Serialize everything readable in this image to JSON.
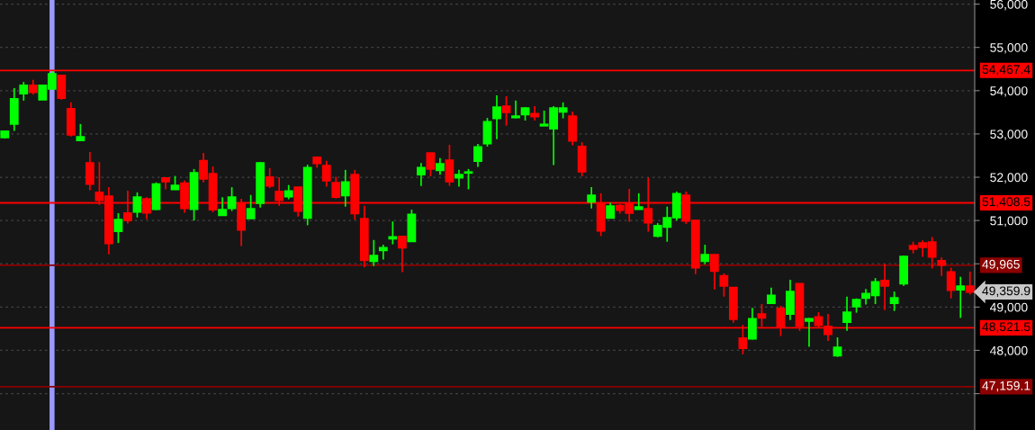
{
  "chart_data": {
    "type": "candlestick",
    "categories": [
      null,
      null,
      null,
      null,
      null,
      null,
      null,
      null,
      null,
      null,
      null,
      null,
      null,
      null,
      null,
      null,
      null,
      null,
      null,
      null,
      null,
      null,
      null,
      null,
      null,
      null,
      null,
      null,
      null,
      null,
      null,
      null,
      null,
      null,
      null,
      null,
      null,
      null,
      null,
      null,
      null,
      null,
      null,
      null,
      null,
      null,
      null,
      null,
      null,
      null,
      null,
      null,
      null,
      null,
      null,
      null,
      null,
      null,
      null,
      null,
      null,
      null,
      null,
      null,
      null,
      null,
      null,
      null,
      null,
      null,
      null,
      null,
      null,
      null,
      null,
      null,
      null,
      null,
      null,
      null,
      null,
      null,
      null,
      null,
      null,
      null,
      null,
      null,
      null,
      null,
      null,
      null,
      null,
      null,
      null,
      null,
      null,
      null,
      null,
      null,
      null,
      null,
      null
    ],
    "ohlc": [
      [
        52920,
        53080,
        52900,
        53060
      ],
      [
        53230,
        54060,
        53070,
        53810
      ],
      [
        53930,
        54200,
        53770,
        54120
      ],
      [
        54120,
        54250,
        53910,
        53960
      ],
      [
        53790,
        54140,
        53790,
        54120
      ],
      [
        54040,
        54450,
        54040,
        54390
      ],
      [
        54350,
        54350,
        53790,
        53830
      ],
      [
        53580,
        53730,
        52940,
        52980
      ],
      [
        52850,
        53230,
        52850,
        52930
      ],
      [
        52330,
        52580,
        51700,
        51840
      ],
      [
        51650,
        52350,
        51360,
        51470
      ],
      [
        51560,
        51770,
        50220,
        50470
      ],
      [
        50750,
        51170,
        50480,
        51020
      ],
      [
        51170,
        51690,
        50930,
        51000
      ],
      [
        51200,
        51650,
        51070,
        51540
      ],
      [
        51500,
        51540,
        51030,
        51180
      ],
      [
        51260,
        51880,
        51240,
        51840
      ],
      [
        51980,
        51980,
        51720,
        51900
      ],
      [
        51720,
        52030,
        51720,
        51810
      ],
      [
        51860,
        51920,
        51180,
        51280
      ],
      [
        51260,
        52190,
        51000,
        52100
      ],
      [
        52380,
        52560,
        51880,
        51960
      ],
      [
        52080,
        52250,
        51190,
        51250
      ],
      [
        51120,
        51540,
        51120,
        51250
      ],
      [
        51280,
        51770,
        51220,
        51540
      ],
      [
        51380,
        51500,
        50410,
        50780
      ],
      [
        51050,
        51590,
        51030,
        51270
      ],
      [
        51400,
        52350,
        51300,
        52330
      ],
      [
        52000,
        52210,
        51750,
        51800
      ],
      [
        51670,
        52000,
        51340,
        51470
      ],
      [
        51550,
        51820,
        51490,
        51680
      ],
      [
        51770,
        51770,
        51090,
        51220
      ],
      [
        51060,
        52290,
        50890,
        52220
      ],
      [
        52460,
        52480,
        52220,
        52320
      ],
      [
        52270,
        52380,
        51780,
        51920
      ],
      [
        51870,
        52010,
        51510,
        51540
      ],
      [
        51580,
        52170,
        51320,
        51890
      ],
      [
        52060,
        52170,
        51020,
        51160
      ],
      [
        51040,
        51340,
        49920,
        50080
      ],
      [
        50060,
        50550,
        49950,
        50190
      ],
      [
        50310,
        50440,
        50100,
        50370
      ],
      [
        50580,
        50980,
        50450,
        50620
      ],
      [
        50630,
        50650,
        49810,
        50370
      ],
      [
        50520,
        51250,
        50520,
        51140
      ],
      [
        52060,
        52330,
        51800,
        52220
      ],
      [
        52560,
        52560,
        52020,
        52190
      ],
      [
        52160,
        52440,
        52060,
        52310
      ],
      [
        52390,
        52750,
        51800,
        51900
      ],
      [
        51990,
        52170,
        51780,
        52060
      ],
      [
        52100,
        52190,
        51720,
        52120
      ],
      [
        52370,
        52770,
        52240,
        52700
      ],
      [
        52780,
        53370,
        52710,
        53280
      ],
      [
        53360,
        53890,
        52880,
        53620
      ],
      [
        53640,
        53870,
        53190,
        53500
      ],
      [
        53380,
        53770,
        53360,
        53410
      ],
      [
        53450,
        53620,
        53310,
        53600
      ],
      [
        53470,
        53640,
        53310,
        53400
      ],
      [
        53190,
        53540,
        53190,
        53220
      ],
      [
        53120,
        53640,
        52280,
        53600
      ],
      [
        53510,
        53730,
        53360,
        53600
      ],
      [
        53410,
        53520,
        52740,
        52840
      ],
      [
        52710,
        52810,
        52020,
        52130
      ],
      [
        51430,
        51770,
        51280,
        51580
      ],
      [
        51400,
        51630,
        50640,
        50760
      ],
      [
        51060,
        51410,
        51060,
        51330
      ],
      [
        51340,
        51380,
        51160,
        51240
      ],
      [
        51400,
        51730,
        50970,
        51170
      ],
      [
        51260,
        51630,
        51260,
        51310
      ],
      [
        51270,
        51990,
        50740,
        50950
      ],
      [
        50640,
        50940,
        50610,
        50880
      ],
      [
        50850,
        51320,
        50510,
        51060
      ],
      [
        51070,
        51670,
        51000,
        51620
      ],
      [
        51580,
        51670,
        50920,
        50990
      ],
      [
        51000,
        51020,
        49760,
        49910
      ],
      [
        50060,
        50440,
        49990,
        50210
      ],
      [
        50210,
        50210,
        49410,
        49830
      ],
      [
        49720,
        49780,
        49240,
        49490
      ],
      [
        49450,
        49460,
        48640,
        48720
      ],
      [
        48280,
        48590,
        47910,
        48050
      ],
      [
        48270,
        48980,
        48250,
        48730
      ],
      [
        48840,
        49070,
        48540,
        48750
      ],
      [
        49090,
        49450,
        49090,
        49270
      ],
      [
        48970,
        49030,
        48330,
        48530
      ],
      [
        48840,
        49630,
        48700,
        49360
      ],
      [
        49540,
        49540,
        48450,
        48560
      ],
      [
        48680,
        48750,
        48080,
        48730
      ],
      [
        48770,
        48880,
        48520,
        48580
      ],
      [
        48550,
        48840,
        48220,
        48370
      ],
      [
        47880,
        48300,
        47850,
        48070
      ],
      [
        48650,
        49240,
        48450,
        48880
      ],
      [
        49010,
        49200,
        48870,
        49170
      ],
      [
        49210,
        49420,
        49060,
        49310
      ],
      [
        49270,
        49670,
        49070,
        49580
      ],
      [
        49610,
        50000,
        48930,
        49490
      ],
      [
        49090,
        49360,
        48910,
        49210
      ],
      [
        49540,
        50190,
        49490,
        50170
      ],
      [
        50420,
        50510,
        50240,
        50340
      ],
      [
        50480,
        50540,
        50160,
        50380
      ],
      [
        50500,
        50620,
        49890,
        50160
      ],
      [
        50070,
        50150,
        49720,
        49970
      ],
      [
        49810,
        49910,
        49200,
        49390
      ],
      [
        49400,
        49700,
        48750,
        49480
      ],
      [
        49480,
        49820,
        49290,
        49350
      ]
    ],
    "colors": [
      "#00ff00",
      "#00ff00",
      "#00ff00",
      "#ff0000",
      "#00ff00",
      "#00ff00",
      "#ff0000",
      "#ff0000",
      "#00ff00",
      "#ff0000",
      "#ff0000",
      "#ff0000",
      "#00ff00",
      "#ff0000",
      "#00ff00",
      "#ff0000",
      "#00ff00",
      "#ff0000",
      "#00ff00",
      "#ff0000",
      "#00ff00",
      "#ff0000",
      "#ff0000",
      "#00ff00",
      "#00ff00",
      "#ff0000",
      "#00ff00",
      "#00ff00",
      "#ff0000",
      "#ff0000",
      "#00ff00",
      "#ff0000",
      "#00ff00",
      "#ff0000",
      "#ff0000",
      "#ff0000",
      "#00ff00",
      "#ff0000",
      "#ff0000",
      "#00ff00",
      "#00ff00",
      "#00ff00",
      "#ff0000",
      "#00ff00",
      "#00ff00",
      "#ff0000",
      "#00ff00",
      "#ff0000",
      "#00ff00",
      "#00ff00",
      "#00ff00",
      "#00ff00",
      "#00ff00",
      "#ff0000",
      "#00ff00",
      "#00ff00",
      "#ff0000",
      "#00ff00",
      "#00ff00",
      "#00ff00",
      "#ff0000",
      "#ff0000",
      "#00ff00",
      "#ff0000",
      "#00ff00",
      "#ff0000",
      "#ff0000",
      "#00ff00",
      "#ff0000",
      "#00ff00",
      "#00ff00",
      "#00ff00",
      "#ff0000",
      "#ff0000",
      "#00ff00",
      "#ff0000",
      "#ff0000",
      "#ff0000",
      "#ff0000",
      "#00ff00",
      "#ff0000",
      "#00ff00",
      "#ff0000",
      "#00ff00",
      "#ff0000",
      "#00ff00",
      "#ff0000",
      "#ff0000",
      "#00ff00",
      "#00ff00",
      "#00ff00",
      "#00ff00",
      "#00ff00",
      "#ff0000",
      "#00ff00",
      "#00ff00",
      "#ff0000",
      "#ff0000",
      "#ff0000",
      "#ff0000",
      "#ff0000",
      "#00ff00",
      "#ff0000"
    ],
    "ylim": [
      46160,
      56095
    ],
    "yticks": [
      {
        "value": 47000,
        "label": null
      },
      {
        "value": 48000,
        "label": "48,000"
      },
      {
        "value": 49000,
        "label": "49,000"
      },
      {
        "value": 50000,
        "label": null
      },
      {
        "value": 51000,
        "label": "51,000"
      },
      {
        "value": 52000,
        "label": "52,000"
      },
      {
        "value": 53000,
        "label": "53,000"
      },
      {
        "value": 54000,
        "label": "54,000"
      },
      {
        "value": 55000,
        "label": "55,000"
      },
      {
        "value": 56000,
        "label": "56,000"
      }
    ],
    "grid": "y",
    "tick_labels": "y",
    "ref_lines": [
      {
        "axis": "y",
        "value": 54467.4,
        "label": "54,467.4",
        "color": "#ff0000"
      },
      {
        "axis": "y",
        "value": 51408.5,
        "label": "51,408.5",
        "color": "#ff0000"
      },
      {
        "axis": "y",
        "value": 49965,
        "label": "49,965",
        "color": "#8b0000"
      },
      {
        "axis": "y",
        "value": 48521.5,
        "label": "48,521.5",
        "color": "#ff0000"
      },
      {
        "axis": "y",
        "value": 47159.1,
        "label": "47,159.1",
        "color": "#8b0000"
      }
    ],
    "annotations": [
      "49,359.9"
    ]
  }
}
